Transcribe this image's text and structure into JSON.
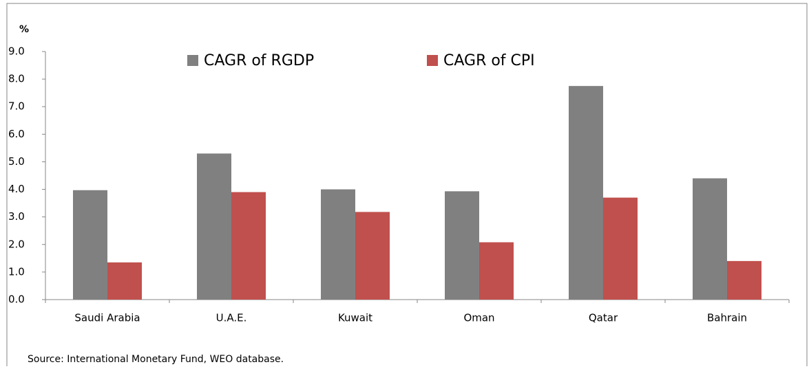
{
  "chart_data": {
    "type": "bar",
    "y_label": "%",
    "categories": [
      "Saudi Arabia",
      "U.A.E.",
      "Kuwait",
      "Oman",
      "Qatar",
      "Bahrain"
    ],
    "series": [
      {
        "name": "CAGR of RGDP",
        "color": "#808080",
        "values": [
          3.97,
          5.3,
          4.0,
          3.93,
          7.75,
          4.4
        ]
      },
      {
        "name": "CAGR of CPI",
        "color": "#c0504d",
        "values": [
          1.35,
          3.9,
          3.18,
          2.08,
          3.7,
          1.4
        ]
      }
    ],
    "ylim": [
      0,
      9
    ],
    "yticks": [
      {
        "value": 0,
        "label": "0.0"
      },
      {
        "value": 1,
        "label": "1.0"
      },
      {
        "value": 2,
        "label": "2.0"
      },
      {
        "value": 3,
        "label": "3.0"
      },
      {
        "value": 4,
        "label": "4.0"
      },
      {
        "value": 5,
        "label": "5.0"
      },
      {
        "value": 6,
        "label": "6.0"
      },
      {
        "value": 7,
        "label": "7.0"
      },
      {
        "value": 8,
        "label": "8.0"
      },
      {
        "value": 9,
        "label": "9.0"
      }
    ],
    "grid": false,
    "source": "Source: International Monetary Fund, WEO database."
  }
}
